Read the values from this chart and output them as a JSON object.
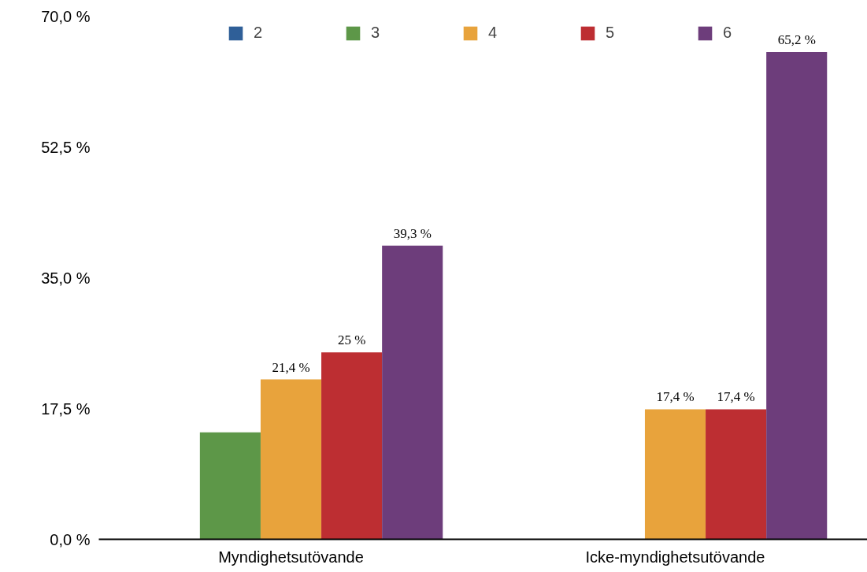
{
  "chart_data": {
    "type": "bar",
    "categories": [
      "Myndighetsutövande",
      "Icke-myndighetsutövande"
    ],
    "series": [
      {
        "name": "2",
        "color": "#2f5f98",
        "values": [
          null,
          null
        ],
        "value_labels": [
          null,
          null
        ]
      },
      {
        "name": "3",
        "color": "#5d9748",
        "values": [
          14.3,
          null
        ],
        "value_labels": [
          null,
          null
        ]
      },
      {
        "name": "4",
        "color": "#e8a33c",
        "values": [
          21.4,
          17.4
        ],
        "value_labels": [
          "21,4 %",
          "17,4 %"
        ]
      },
      {
        "name": "5",
        "color": "#bd2e32",
        "values": [
          25,
          17.4
        ],
        "value_labels": [
          "25 %",
          "17,4 %"
        ]
      },
      {
        "name": "6",
        "color": "#6d3d7b",
        "values": [
          39.3,
          65.2
        ],
        "value_labels": [
          "39,3 %",
          "65,2 %"
        ]
      }
    ],
    "ylim": [
      0,
      70
    ],
    "yticks": [
      {
        "value": 0,
        "label": "0,0 %"
      },
      {
        "value": 17.5,
        "label": "17,5 %"
      },
      {
        "value": 35,
        "label": "35,0 %"
      },
      {
        "value": 52.5,
        "label": "52,5 %"
      },
      {
        "value": 70,
        "label": "70,0 %"
      }
    ],
    "grid": false,
    "legend": "top"
  }
}
